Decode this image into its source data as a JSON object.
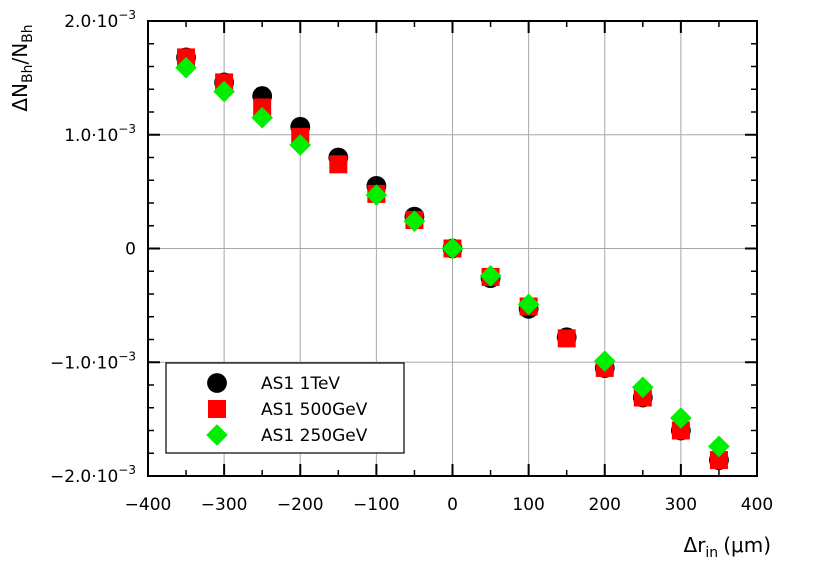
{
  "chart_data": {
    "type": "scatter",
    "title": "",
    "xlabel": {
      "main": "Δr",
      "sub": "in",
      "unit": "(μm)"
    },
    "ylabel": {
      "delta": "ΔN",
      "sub1": "Bh",
      "slash": "/N",
      "sub2": "Bh"
    },
    "xlim": [
      -400,
      400
    ],
    "ylim": [
      -0.002,
      0.002
    ],
    "x_ticks": [
      -400,
      -300,
      -200,
      -100,
      0,
      100,
      200,
      300,
      400
    ],
    "x_tick_labels": [
      "−400",
      "−300",
      "−200",
      "−100",
      "0",
      "100",
      "200",
      "300",
      "400"
    ],
    "y_ticks": [
      -0.002,
      -0.001,
      0,
      0.001,
      0.002
    ],
    "y_tick_labels": [
      {
        "mant": "−2.0·10",
        "exp": "−3"
      },
      {
        "mant": "−1.0·10",
        "exp": "−3"
      },
      {
        "mant": "0",
        "exp": ""
      },
      {
        "mant": "1.0·10",
        "exp": "−3"
      },
      {
        "mant": "2.0·10",
        "exp": "−3"
      }
    ],
    "grid": true,
    "legend_position": "bottom-left",
    "series": [
      {
        "name": "AS1 1TeV",
        "marker": "circle",
        "color": "#000000",
        "x": [
          -350,
          -300,
          -250,
          -200,
          -150,
          -100,
          -50,
          0,
          50,
          100,
          150,
          200,
          250,
          300,
          350
        ],
        "y": [
          0.00168,
          0.00146,
          0.00134,
          0.00107,
          0.0008,
          0.00055,
          0.00028,
          0.0,
          -0.00026,
          -0.00053,
          -0.00078,
          -0.00105,
          -0.00131,
          -0.0016,
          -0.00186
        ]
      },
      {
        "name": "AS1 500GeV",
        "marker": "square",
        "color": "#ff0000",
        "x": [
          -350,
          -300,
          -250,
          -200,
          -150,
          -100,
          -50,
          0,
          50,
          100,
          150,
          200,
          250,
          300,
          350
        ],
        "y": [
          0.00168,
          0.00146,
          0.00124,
          0.00098,
          0.00074,
          0.00048,
          0.00025,
          0.0,
          -0.00025,
          -0.00051,
          -0.00079,
          -0.00105,
          -0.00131,
          -0.0016,
          -0.00186
        ]
      },
      {
        "name": "AS1 250GeV",
        "marker": "diamond",
        "color": "#00ee00",
        "x": [
          -350,
          -300,
          -250,
          -200,
          -150,
          -100,
          -50,
          0,
          50,
          100,
          150,
          200,
          250,
          300,
          350
        ],
        "y": [
          0.00159,
          0.00138,
          0.00115,
          0.00091,
          null,
          0.00047,
          0.00024,
          0.0,
          -0.00024,
          -0.00049,
          null,
          -0.00099,
          -0.00122,
          -0.00149,
          -0.00174
        ]
      }
    ]
  }
}
